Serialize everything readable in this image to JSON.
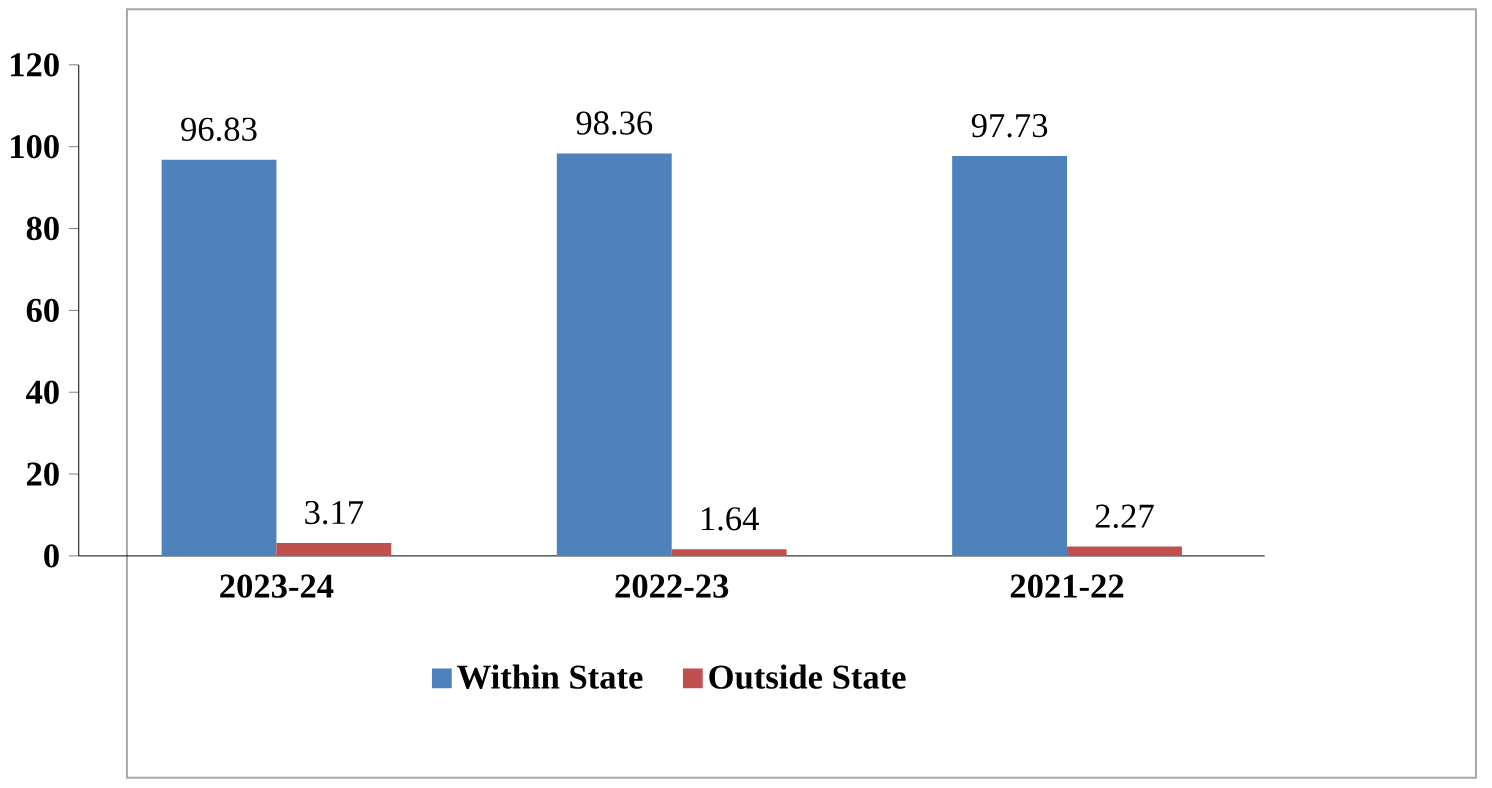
{
  "chart_data": {
    "type": "bar",
    "categories": [
      "2023-24",
      "2022-23",
      "2021-22"
    ],
    "series": [
      {
        "name": "Within State",
        "color": "#4f81bd",
        "values": [
          96.83,
          98.36,
          97.73
        ]
      },
      {
        "name": "Outside State",
        "color": "#c0504d",
        "values": [
          3.17,
          1.64,
          2.27
        ]
      }
    ],
    "ylim": [
      0,
      120
    ],
    "yticks": [
      0,
      20,
      40,
      60,
      80,
      100,
      120
    ],
    "data_labels": true,
    "legend": "bottom"
  }
}
